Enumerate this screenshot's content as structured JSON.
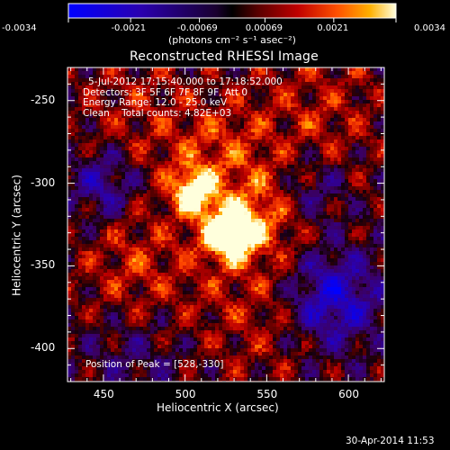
{
  "chart_data": {
    "type": "heatmap",
    "title": "Reconstructed RHESSI Image",
    "xlabel": "Heliocentric X (arcsec)",
    "ylabel": "Heliocentric Y (arcsec)",
    "xlim": [
      428,
      622
    ],
    "ylim": [
      -420,
      -230
    ],
    "x_ticks": [
      450,
      500,
      550,
      600
    ],
    "y_ticks": [
      -250,
      -300,
      -350,
      -400
    ],
    "colorbar": {
      "ticks": [
        "-0.0034",
        "-0.0021",
        "-0.00069",
        "0.00069",
        "0.0021",
        "0.0034"
      ],
      "unit_label": "(photons cm⁻² s⁻¹ asec⁻²)",
      "range": [
        -0.0034,
        0.0034
      ]
    },
    "annotations": {
      "time_range": "5-Jul-2012 17:15:40.000 to 17:18:52.000",
      "detectors": "Detectors: 3F 5F 6F 7F 8F 9F, Att 0",
      "energy_range": "Energy Range: 12.0 - 25.0 keV",
      "clean_counts": "Clean    Total counts: 4.82E+03",
      "peak_position": "Position of Peak = [528,-330]"
    },
    "peak": {
      "x": 528,
      "y": -330
    },
    "timestamp": "30-Apr-2014 11:53"
  }
}
